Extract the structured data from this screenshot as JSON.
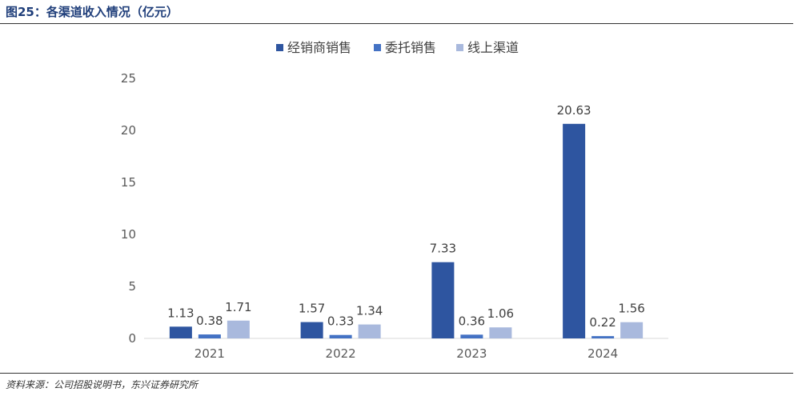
{
  "header": {
    "title": "图25：各渠道收入情况（亿元）"
  },
  "footer": {
    "source": "资料来源：公司招股说明书，东兴证券研究所"
  },
  "chart_data": {
    "type": "bar",
    "categories": [
      "2021",
      "2022",
      "2023",
      "2024"
    ],
    "series": [
      {
        "name": "经销商销售",
        "values": [
          1.13,
          1.57,
          7.33,
          20.63
        ],
        "color": "#2e55a0"
      },
      {
        "name": "委托销售",
        "values": [
          0.38,
          0.33,
          0.36,
          0.22
        ],
        "color": "#4472c4"
      },
      {
        "name": "线上渠道",
        "values": [
          1.71,
          1.34,
          1.06,
          1.56
        ],
        "color": "#a9b9dd"
      }
    ],
    "data_labels": [
      [
        "1.13",
        "1.57",
        "7.33",
        "20.63"
      ],
      [
        "0.38",
        "0.33",
        "0.36",
        "0.22"
      ],
      [
        "1.71",
        "1.34",
        "1.06",
        "1.56"
      ]
    ],
    "y_ticks": [
      "0",
      "5",
      "10",
      "15",
      "20",
      "25"
    ],
    "ylim": [
      0,
      25
    ],
    "legend_position": "top-center",
    "grid": false,
    "title": "",
    "xlabel": "",
    "ylabel": ""
  }
}
